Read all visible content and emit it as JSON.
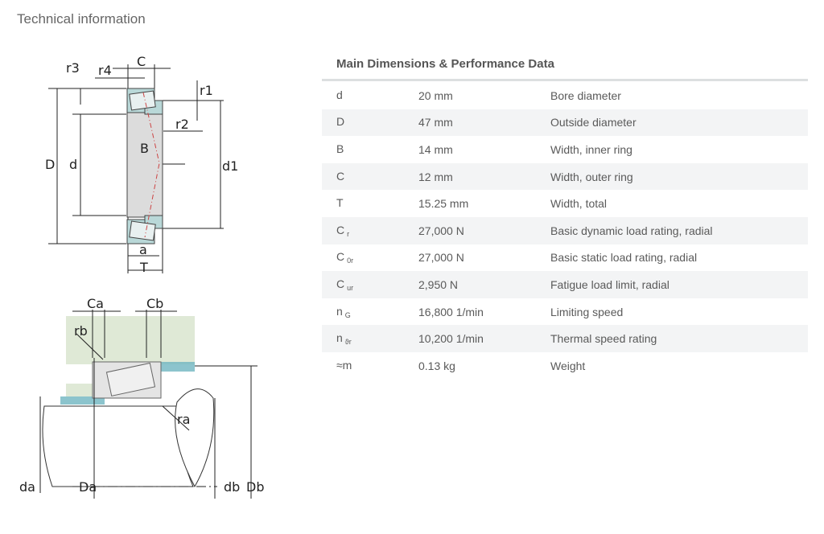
{
  "page_title": "Technical information",
  "table": {
    "title": "Main Dimensions & Performance Data",
    "rows": [
      {
        "symbol": "d",
        "sub": "",
        "value": "20  mm",
        "desc": "Bore diameter"
      },
      {
        "symbol": "D",
        "sub": "",
        "value": "47  mm",
        "desc": "Outside diameter"
      },
      {
        "symbol": "B",
        "sub": "",
        "value": "14  mm",
        "desc": "Width, inner ring"
      },
      {
        "symbol": "C",
        "sub": "",
        "value": "12  mm",
        "desc": "Width, outer ring"
      },
      {
        "symbol": "T",
        "sub": "",
        "value": "15.25  mm",
        "desc": "Width, total"
      },
      {
        "symbol": "C",
        "sub": "r",
        "value": "27,000  N",
        "desc": "Basic dynamic load rating, radial"
      },
      {
        "symbol": "C",
        "sub": "0r",
        "value": "27,000  N",
        "desc": "Basic static load rating, radial"
      },
      {
        "symbol": "C",
        "sub": "ur",
        "value": "2,950  N",
        "desc": "Fatigue load limit, radial"
      },
      {
        "symbol": "n",
        "sub": "G",
        "value": "16,800  1/min",
        "desc": "Limiting speed"
      },
      {
        "symbol": "n",
        "sub": "ϑr",
        "value": "10,200  1/min",
        "desc": "Thermal speed rating"
      },
      {
        "symbol": "≈m",
        "sub": "",
        "value": "0.13  kg",
        "desc": "Weight"
      }
    ]
  },
  "diagram_top_labels": {
    "r3": "r3",
    "r4": "r4",
    "C": "C",
    "r1": "r1",
    "r2": "r2",
    "B": "B",
    "D": "D",
    "d": "d",
    "d1": "d1",
    "a": "a",
    "T": "T"
  },
  "diagram_bottom_labels": {
    "Ca": "Ca",
    "Cb": "Cb",
    "rb": "rb",
    "ra": "ra",
    "da": "da",
    "Da": "Da",
    "db": "db",
    "Db": "Db"
  },
  "colors": {
    "ring": "#b9d8d8",
    "inner": "#dcdcdc",
    "housing": "#dfe9d6",
    "seal": "#6fb5c0"
  }
}
